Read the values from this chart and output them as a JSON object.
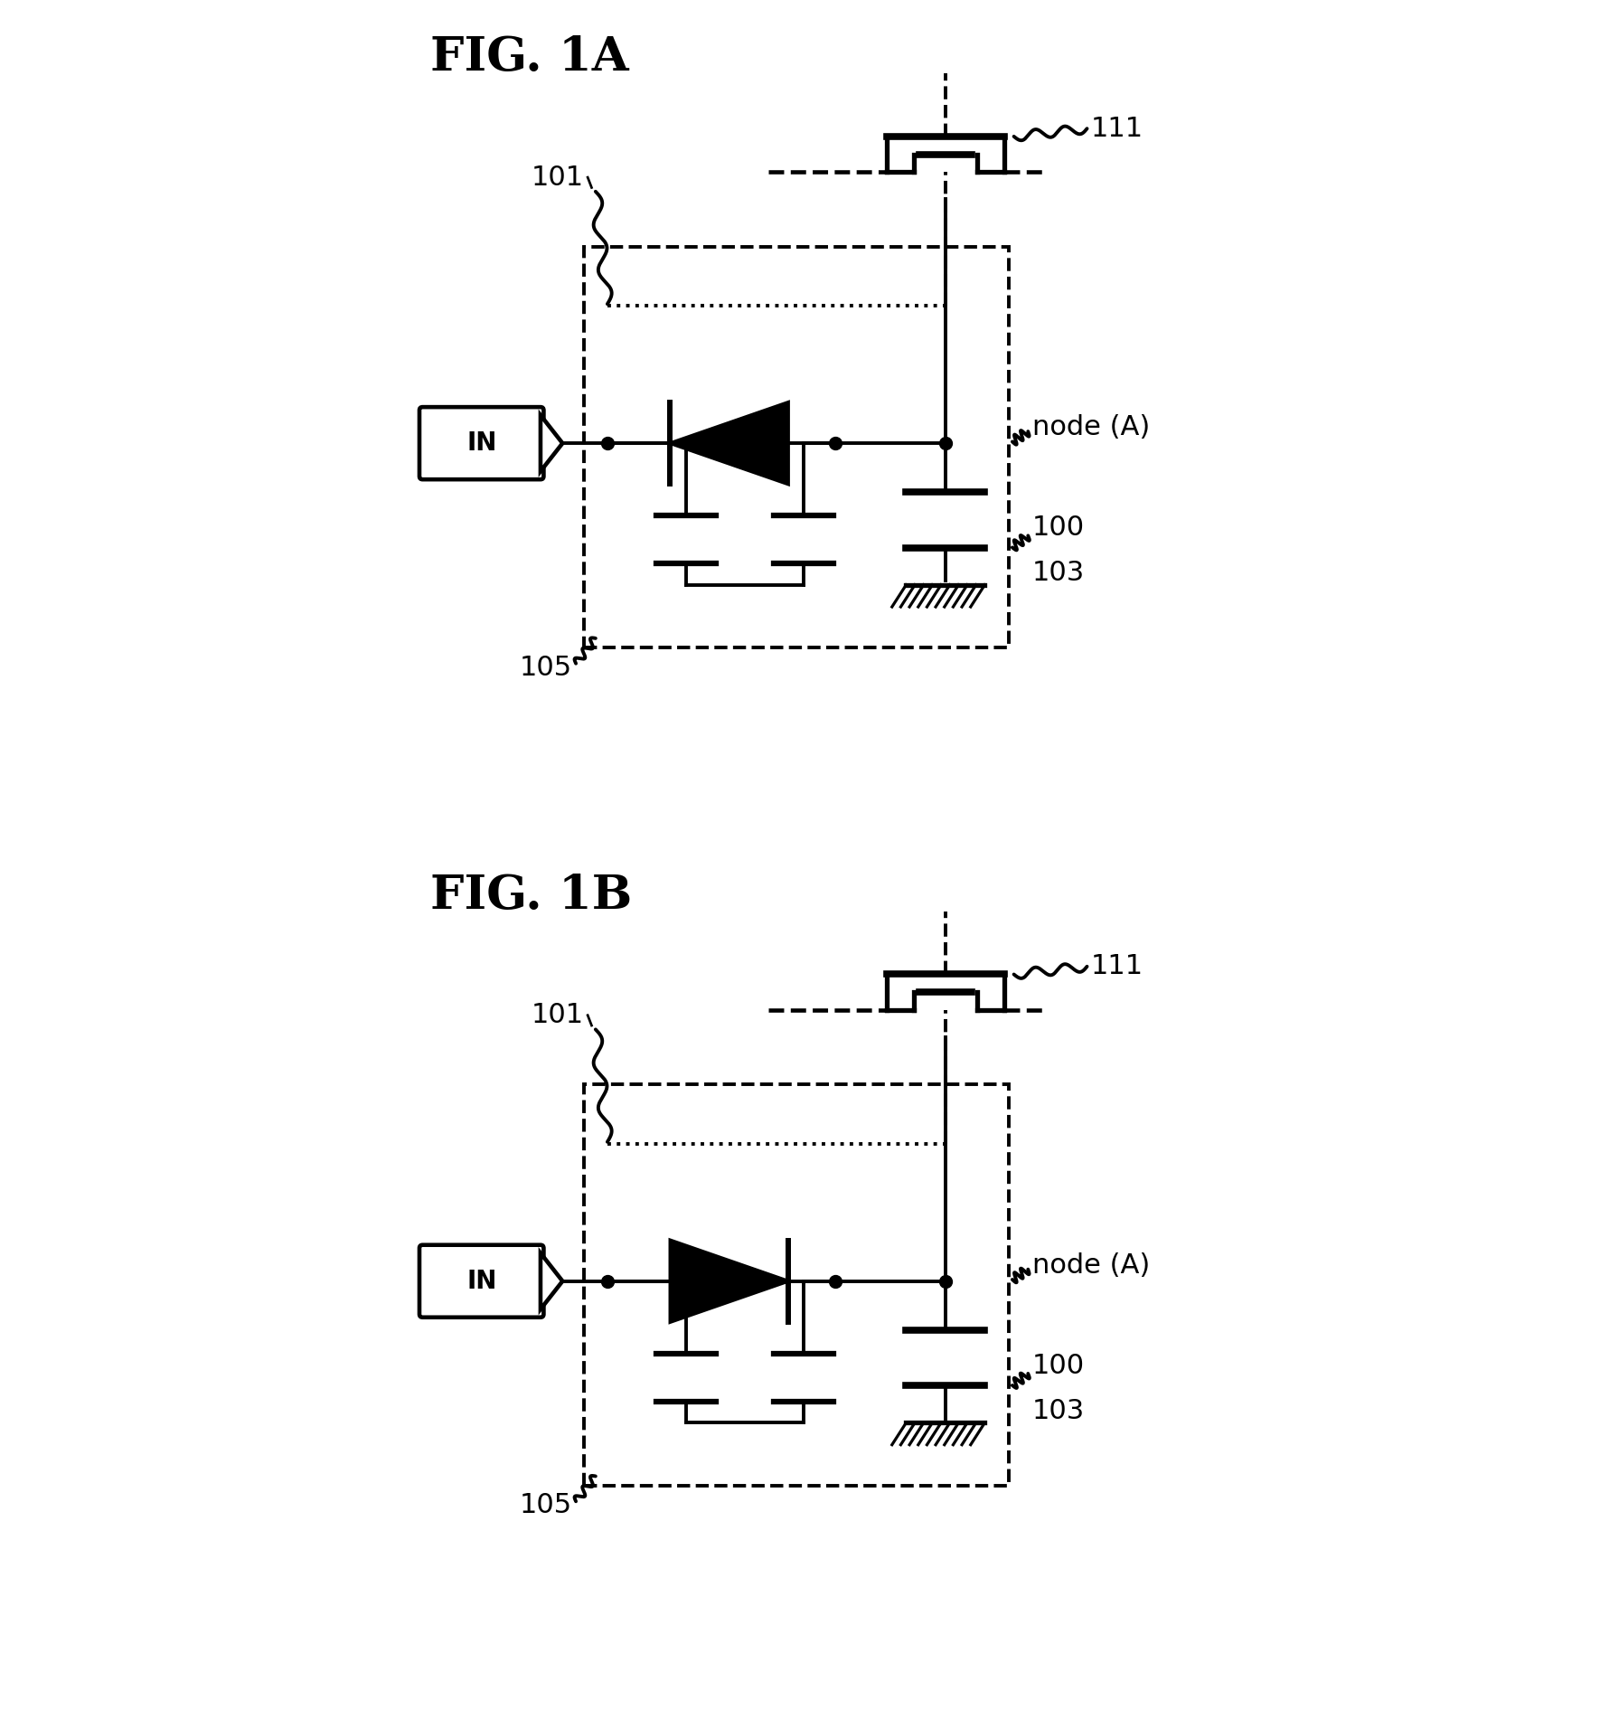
{
  "fig_title_1A": "FIG. 1A",
  "fig_title_1B": "FIG. 1B",
  "background_color": "#ffffff",
  "line_color": "#000000",
  "lw": 2.8,
  "hlw": 5.5,
  "label_101": "101",
  "label_111": "111",
  "label_nodeA": "node (A)",
  "label_100": "100",
  "label_103": "103",
  "label_105": "105",
  "label_IN": "IN",
  "title_fontsize": 38,
  "label_fontsize": 22
}
